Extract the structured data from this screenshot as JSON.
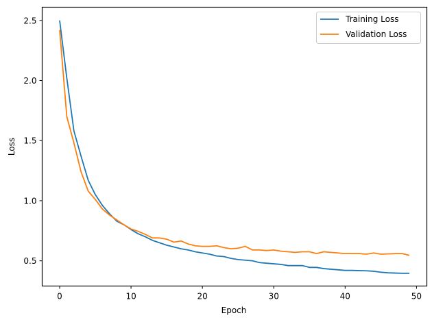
{
  "chart_data": {
    "type": "line",
    "title": "",
    "xlabel": "Epoch",
    "ylabel": "Loss",
    "xlim": [
      -2.45,
      51.45
    ],
    "ylim": [
      0.29,
      2.61
    ],
    "xticks": [
      0,
      10,
      20,
      30,
      40,
      50
    ],
    "xtick_labels": [
      "0",
      "10",
      "20",
      "30",
      "40",
      "50"
    ],
    "yticks": [
      0.5,
      1.0,
      1.5,
      2.0,
      2.5
    ],
    "ytick_labels": [
      "0.5",
      "1.0",
      "1.5",
      "2.0",
      "2.5"
    ],
    "grid": false,
    "legend_position": "upper right",
    "x": [
      0,
      1,
      2,
      3,
      4,
      5,
      6,
      7,
      8,
      9,
      10,
      11,
      12,
      13,
      14,
      15,
      16,
      17,
      18,
      19,
      20,
      21,
      22,
      23,
      24,
      25,
      26,
      27,
      28,
      29,
      30,
      31,
      32,
      33,
      34,
      35,
      36,
      37,
      38,
      39,
      40,
      41,
      42,
      43,
      44,
      45,
      46,
      47,
      48,
      49
    ],
    "series": [
      {
        "name": "Training Loss",
        "color": "#1f77b4",
        "values": [
          2.5,
          2.02,
          1.58,
          1.37,
          1.17,
          1.05,
          0.96,
          0.89,
          0.83,
          0.8,
          0.76,
          0.725,
          0.7,
          0.67,
          0.65,
          0.63,
          0.615,
          0.6,
          0.59,
          0.575,
          0.565,
          0.555,
          0.54,
          0.535,
          0.52,
          0.51,
          0.505,
          0.5,
          0.485,
          0.48,
          0.475,
          0.47,
          0.46,
          0.46,
          0.46,
          0.445,
          0.445,
          0.435,
          0.43,
          0.425,
          0.42,
          0.42,
          0.418,
          0.417,
          0.413,
          0.405,
          0.4,
          0.398,
          0.396,
          0.396
        ]
      },
      {
        "name": "Validation Loss",
        "color": "#ff7f0e",
        "values": [
          2.42,
          1.7,
          1.48,
          1.24,
          1.08,
          1.01,
          0.93,
          0.88,
          0.84,
          0.8,
          0.765,
          0.745,
          0.72,
          0.69,
          0.69,
          0.68,
          0.655,
          0.665,
          0.64,
          0.625,
          0.62,
          0.62,
          0.625,
          0.61,
          0.6,
          0.605,
          0.62,
          0.59,
          0.59,
          0.585,
          0.59,
          0.58,
          0.575,
          0.57,
          0.575,
          0.575,
          0.56,
          0.575,
          0.57,
          0.565,
          0.56,
          0.56,
          0.56,
          0.555,
          0.565,
          0.555,
          0.557,
          0.56,
          0.56,
          0.545
        ]
      }
    ]
  }
}
